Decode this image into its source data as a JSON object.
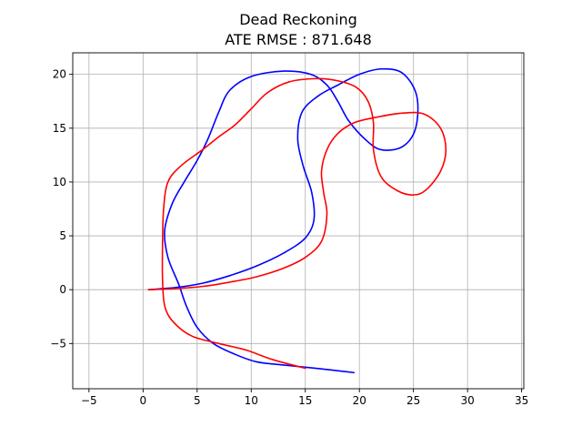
{
  "chart_data": {
    "type": "line",
    "title": "Dead Reckoning",
    "subtitle": "ATE RMSE : 871.648",
    "xlim": [
      -6.5,
      35.2
    ],
    "ylim": [
      -9.2,
      22.0
    ],
    "xticks": [
      -5,
      0,
      5,
      10,
      15,
      20,
      25,
      30,
      35
    ],
    "yticks": [
      -5,
      0,
      5,
      10,
      15,
      20
    ],
    "grid": true,
    "series": [
      {
        "color": "#0000ff",
        "points": [
          [
            0.5,
            0.0
          ],
          [
            3.0,
            0.2
          ],
          [
            5.5,
            0.6
          ],
          [
            8.0,
            1.3
          ],
          [
            10.5,
            2.2
          ],
          [
            13.0,
            3.4
          ],
          [
            15.0,
            4.8
          ],
          [
            15.8,
            6.5
          ],
          [
            15.6,
            9.0
          ],
          [
            14.8,
            11.5
          ],
          [
            14.3,
            14.0
          ],
          [
            14.7,
            16.5
          ],
          [
            16.2,
            18.0
          ],
          [
            18.0,
            19.0
          ],
          [
            20.0,
            20.0
          ],
          [
            22.0,
            20.5
          ],
          [
            24.0,
            20.1
          ],
          [
            25.3,
            18.0
          ],
          [
            25.2,
            15.0
          ],
          [
            24.0,
            13.3
          ],
          [
            22.0,
            13.0
          ],
          [
            20.5,
            14.0
          ],
          [
            19.0,
            15.7
          ],
          [
            18.0,
            17.5
          ],
          [
            17.0,
            19.0
          ],
          [
            15.5,
            20.0
          ],
          [
            13.0,
            20.3
          ],
          [
            10.0,
            19.8
          ],
          [
            8.0,
            18.5
          ],
          [
            7.0,
            16.5
          ],
          [
            6.0,
            14.0
          ],
          [
            5.0,
            12.0
          ],
          [
            3.8,
            10.0
          ],
          [
            2.7,
            8.0
          ],
          [
            2.0,
            5.5
          ],
          [
            2.3,
            3.0
          ],
          [
            3.3,
            0.5
          ],
          [
            4.0,
            -1.5
          ],
          [
            5.0,
            -3.5
          ],
          [
            6.5,
            -5.0
          ],
          [
            8.5,
            -6.0
          ],
          [
            10.5,
            -6.7
          ],
          [
            13.0,
            -7.0
          ],
          [
            16.0,
            -7.3
          ],
          [
            19.5,
            -7.7
          ]
        ]
      },
      {
        "color": "#ff0000",
        "points": [
          [
            0.5,
            0.0
          ],
          [
            3.0,
            0.1
          ],
          [
            5.5,
            0.3
          ],
          [
            8.0,
            0.7
          ],
          [
            10.5,
            1.2
          ],
          [
            13.0,
            2.0
          ],
          [
            15.0,
            3.0
          ],
          [
            16.5,
            4.5
          ],
          [
            17.0,
            7.0
          ],
          [
            16.7,
            9.0
          ],
          [
            16.5,
            11.0
          ],
          [
            17.0,
            13.0
          ],
          [
            18.0,
            14.5
          ],
          [
            19.5,
            15.5
          ],
          [
            21.5,
            16.0
          ],
          [
            24.0,
            16.4
          ],
          [
            26.0,
            16.3
          ],
          [
            27.5,
            15.0
          ],
          [
            28.0,
            13.0
          ],
          [
            27.5,
            11.0
          ],
          [
            26.2,
            9.3
          ],
          [
            25.0,
            8.8
          ],
          [
            23.5,
            9.2
          ],
          [
            22.0,
            10.5
          ],
          [
            21.3,
            13.0
          ],
          [
            21.3,
            15.5
          ],
          [
            20.8,
            17.5
          ],
          [
            19.7,
            18.8
          ],
          [
            18.0,
            19.4
          ],
          [
            16.0,
            19.6
          ],
          [
            13.5,
            19.3
          ],
          [
            11.5,
            18.3
          ],
          [
            10.0,
            16.8
          ],
          [
            8.5,
            15.3
          ],
          [
            7.0,
            14.2
          ],
          [
            5.5,
            13.0
          ],
          [
            3.5,
            11.5
          ],
          [
            2.3,
            10.0
          ],
          [
            1.9,
            7.5
          ],
          [
            1.8,
            4.0
          ],
          [
            1.8,
            1.0
          ],
          [
            2.0,
            -1.5
          ],
          [
            2.8,
            -3.0
          ],
          [
            4.5,
            -4.3
          ],
          [
            7.0,
            -5.0
          ],
          [
            9.5,
            -5.6
          ],
          [
            12.0,
            -6.5
          ],
          [
            15.0,
            -7.3
          ]
        ]
      }
    ]
  }
}
